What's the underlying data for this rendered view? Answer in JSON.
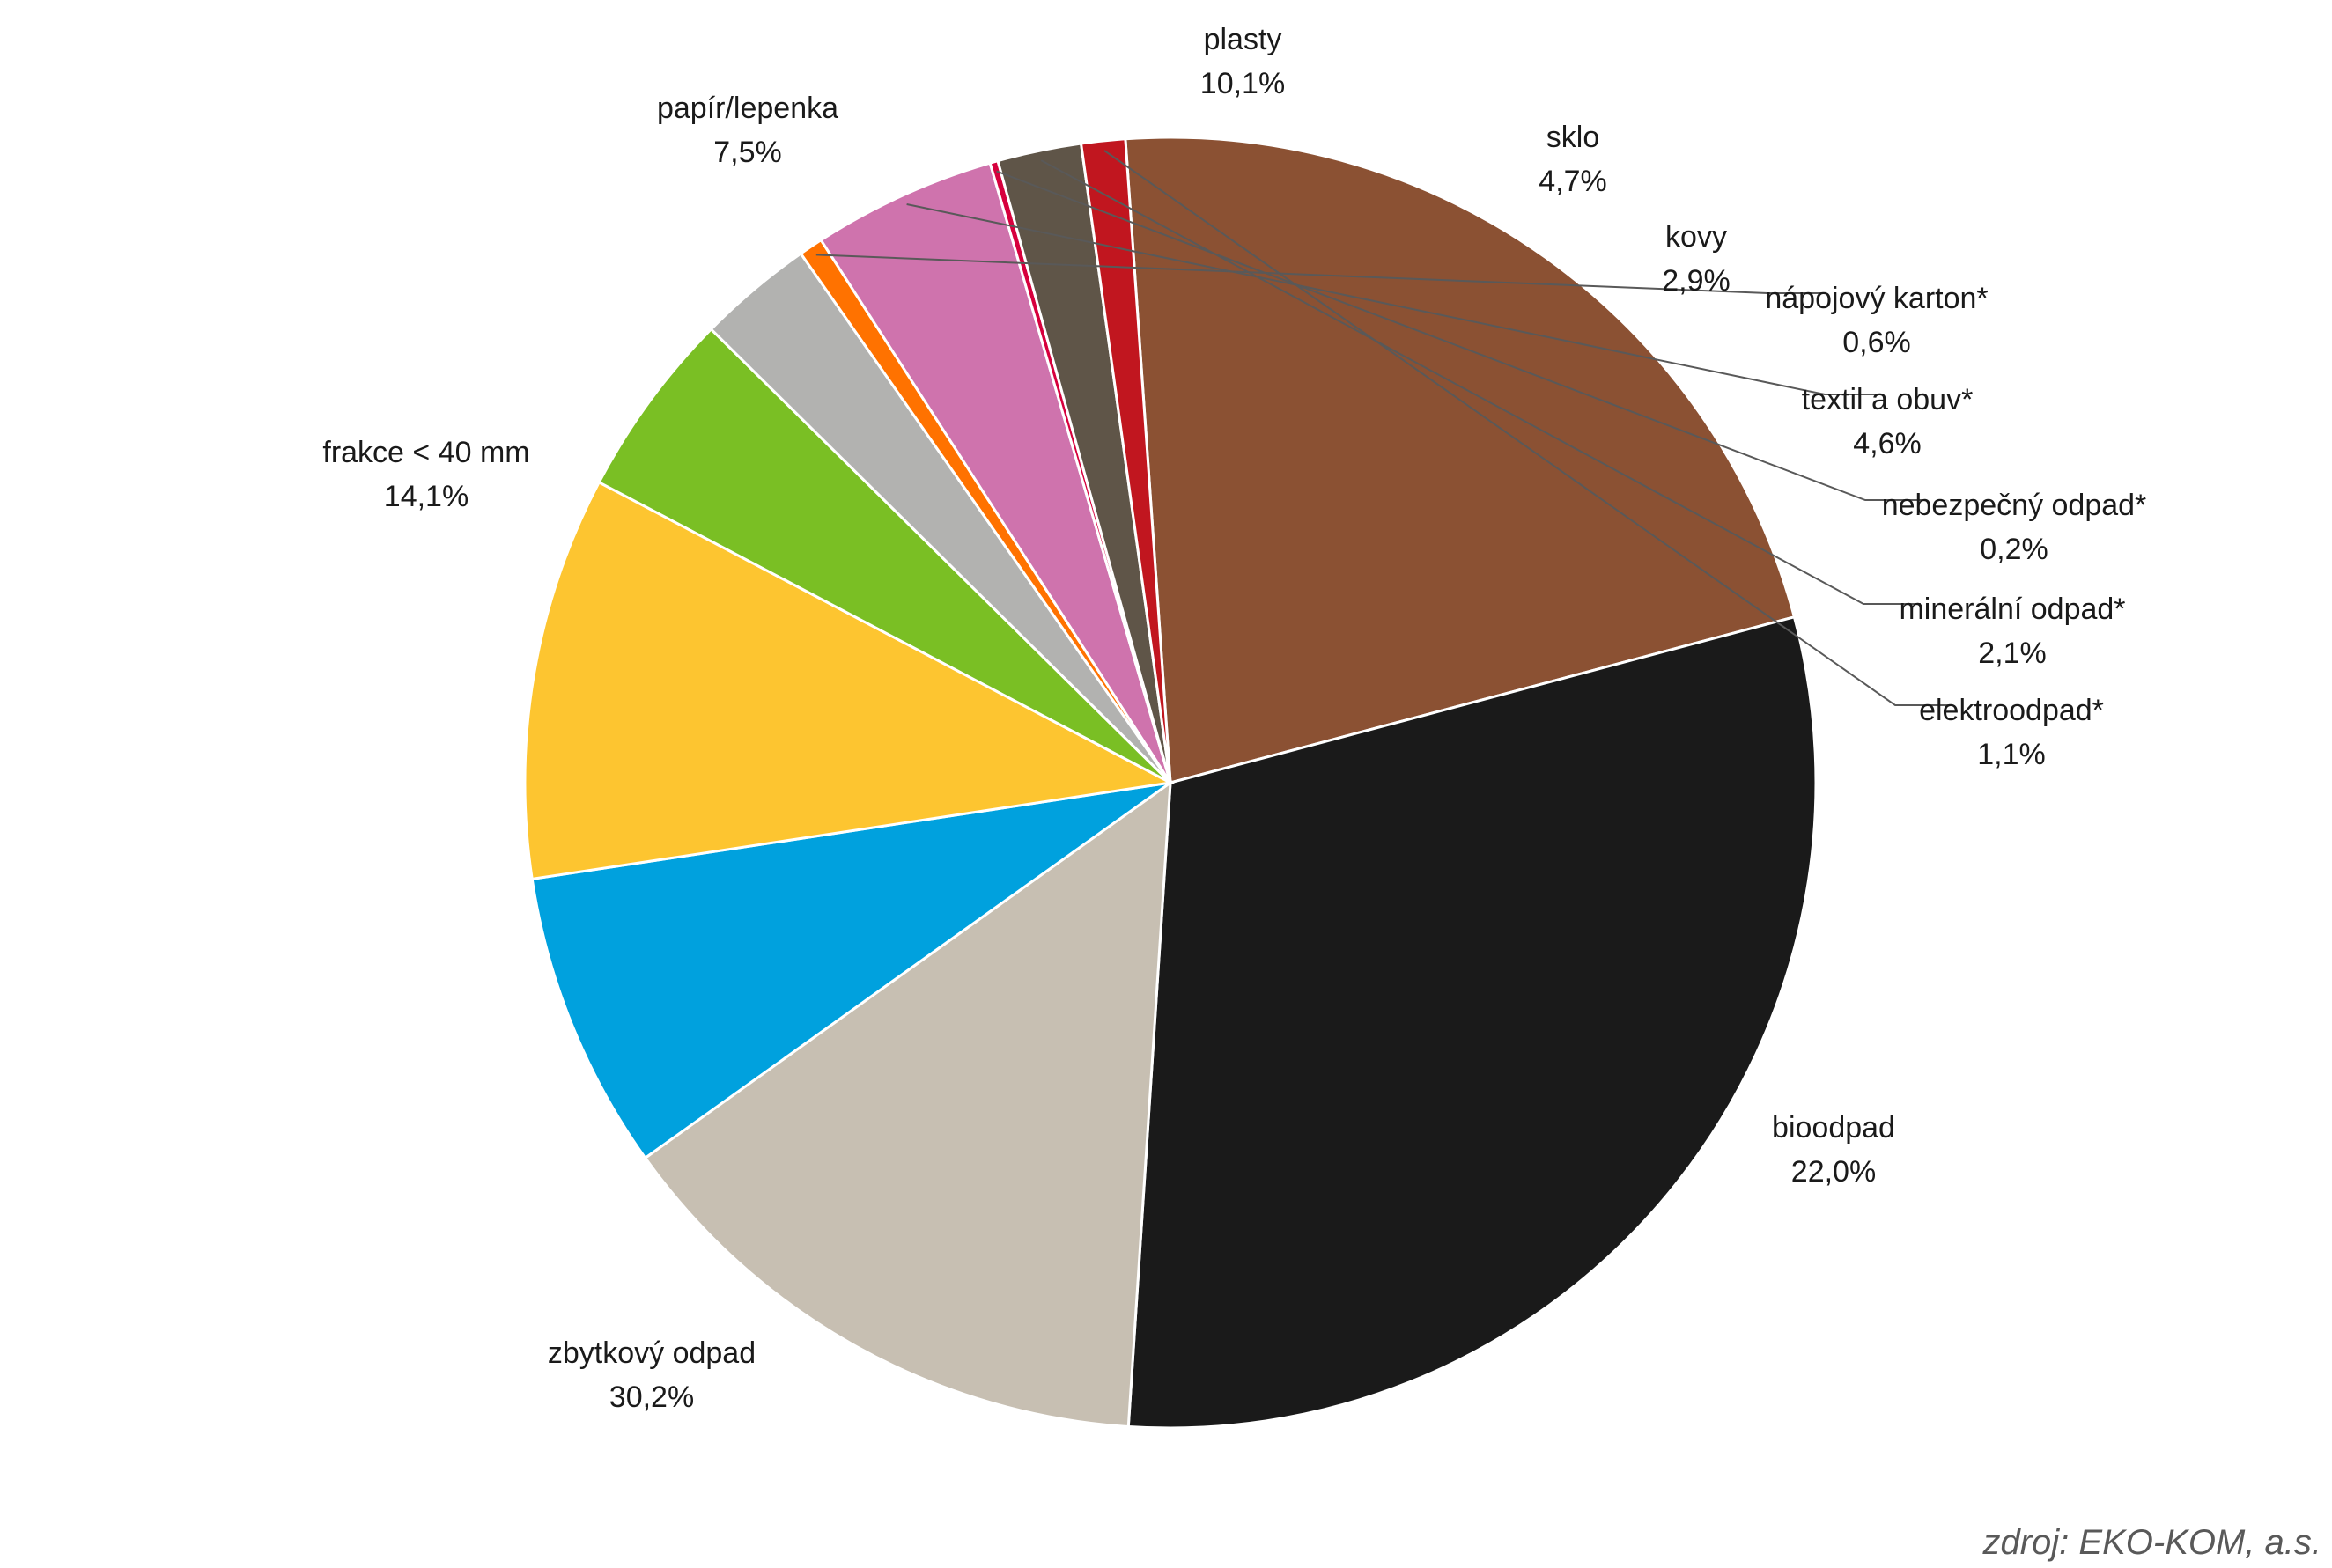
{
  "chart_data": {
    "type": "pie",
    "start_angle_deg": 94,
    "direction": "clockwise",
    "slices": [
      {
        "label": "bioodpad",
        "value_text": "22,0%",
        "value": 22.0,
        "color": "#8B5133"
      },
      {
        "label": "zbytkový odpad",
        "value_text": "30,2%",
        "value": 30.2,
        "color": "#1A1A1A"
      },
      {
        "label": "frakce < 40 mm",
        "value_text": "14,1%",
        "value": 14.1,
        "color": "#C7BFB2"
      },
      {
        "label": "papír/lepenka",
        "value_text": "7,5%",
        "value": 7.5,
        "color": "#00A1DE"
      },
      {
        "label": "plasty",
        "value_text": "10,1%",
        "value": 10.1,
        "color": "#FDC530"
      },
      {
        "label": "sklo",
        "value_text": "4,7%",
        "value": 4.7,
        "color": "#7ABF24"
      },
      {
        "label": "kovy",
        "value_text": "2,9%",
        "value": 2.9,
        "color": "#B2B2B0"
      },
      {
        "label": "nápojový karton*",
        "value_text": "0,6%",
        "value": 0.6,
        "color": "#FF7200"
      },
      {
        "label": "textil a obuv*",
        "value_text": "4,6%",
        "value": 4.6,
        "color": "#CF73AD"
      },
      {
        "label": "nebezpečný odpad*",
        "value_text": "0,2%",
        "value": 0.2,
        "color": "#D6003D"
      },
      {
        "label": "minerální odpad*",
        "value_text": "2,1%",
        "value": 2.1,
        "color": "#5F5548"
      },
      {
        "label": "elektroodpad*",
        "value_text": "1,1%",
        "value": 1.1,
        "color": "#C1161F"
      }
    ]
  },
  "source_note": "zdroj: EKO-KOM, a.s."
}
